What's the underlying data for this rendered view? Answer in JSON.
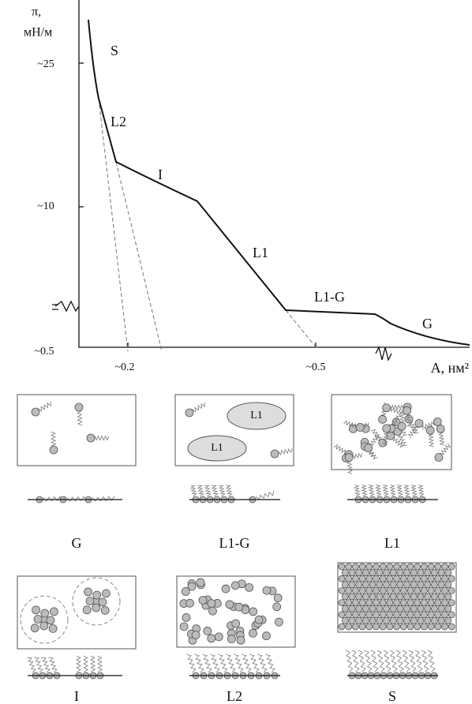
{
  "axes": {
    "y_label": "π,",
    "y_unit": "мН/м",
    "x_label": "A, нм²",
    "y_ticks": [
      "~25",
      "~10",
      "~0.5"
    ],
    "x_ticks": [
      "~0.2",
      "~0.5"
    ]
  },
  "curve_labels": [
    "S",
    "L2",
    "I",
    "L1",
    "L1-G",
    "G"
  ],
  "panels": [
    {
      "label": "G"
    },
    {
      "label": "L1-G",
      "domain_labels": [
        "L1",
        "L1"
      ]
    },
    {
      "label": "L1"
    },
    {
      "label": "I"
    },
    {
      "label": "L2"
    },
    {
      "label": "S"
    }
  ]
}
